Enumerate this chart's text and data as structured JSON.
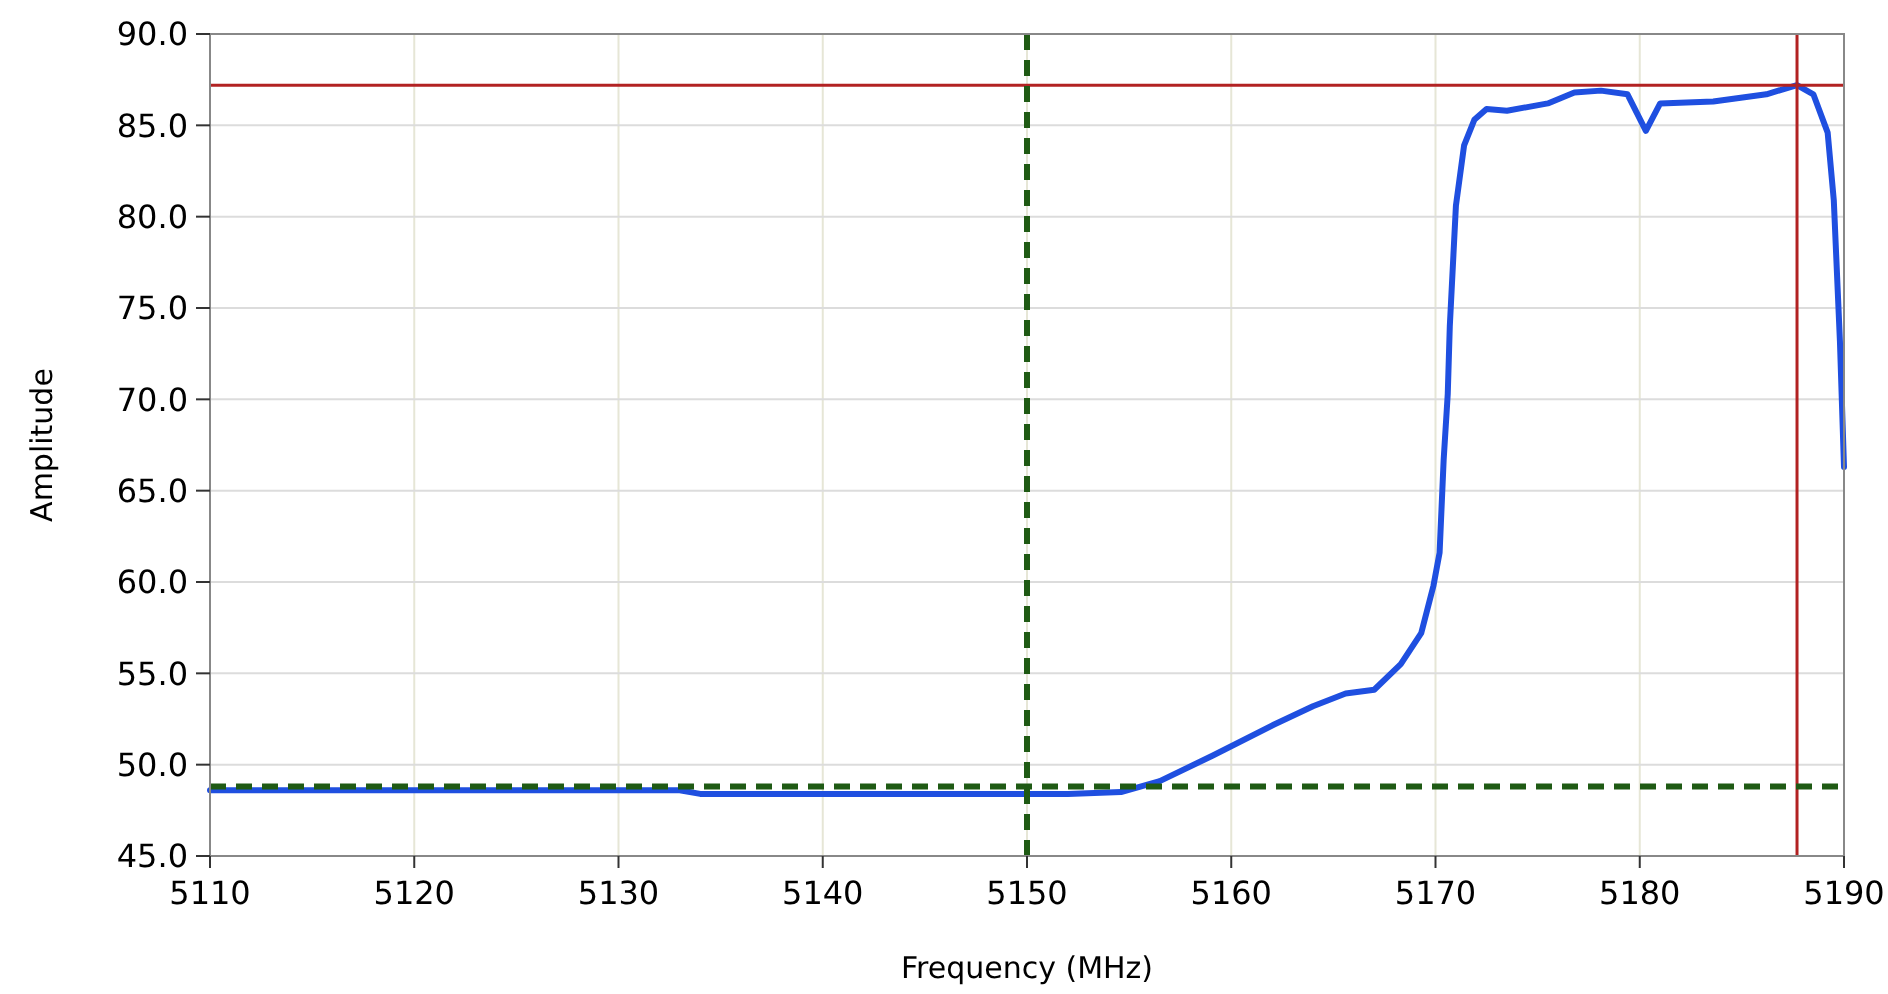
{
  "chart_data": {
    "type": "line",
    "xlabel": "Frequency (MHz)",
    "ylabel": "Amplitude",
    "xlim": [
      5110,
      5190
    ],
    "xticks": [
      5110,
      5120,
      5130,
      5140,
      5150,
      5160,
      5170,
      5180,
      5190
    ],
    "ylim": [
      45,
      90
    ],
    "yticks": [
      {
        "value": 45,
        "label": "45.0"
      },
      {
        "value": 50,
        "label": "50.0"
      },
      {
        "value": 55,
        "label": "55.0"
      },
      {
        "value": 60,
        "label": "60.0"
      },
      {
        "value": 65,
        "label": "65.0"
      },
      {
        "value": 70,
        "label": "70.0"
      },
      {
        "value": 75,
        "label": "75.0"
      },
      {
        "value": 80,
        "label": "80.0"
      },
      {
        "value": 85,
        "label": "85.0"
      },
      {
        "value": 90,
        "label": "90.0"
      }
    ],
    "grid": true,
    "line_style": "solid",
    "marker": "none",
    "series": [
      {
        "color": "#1f4fe0",
        "x": [
          5110,
          5120,
          5133,
          5134,
          5145,
          5152,
          5154.6,
          5156.5,
          5159.1,
          5162.1,
          5164,
          5165.6,
          5167,
          5168.3,
          5169.3,
          5169.9,
          5170.2,
          5170.4,
          5170.6,
          5170.7,
          5171,
          5171.4,
          5171.9,
          5172.5,
          5173.5,
          5175.5,
          5176.8,
          5178.1,
          5179.4,
          5180.3,
          5181,
          5183.6,
          5186.2,
          5187.7,
          5188.5,
          5189.2,
          5189.5,
          5189.8,
          5190
        ],
        "values": [
          48.6,
          48.6,
          48.6,
          48.4,
          48.4,
          48.4,
          48.5,
          49.1,
          50.5,
          52.2,
          53.2,
          53.9,
          54.1,
          55.5,
          57.2,
          59.8,
          61.6,
          66.7,
          70.3,
          74,
          80.6,
          83.9,
          85.3,
          85.9,
          85.8,
          86.2,
          86.8,
          86.9,
          86.7,
          84.7,
          86.2,
          86.3,
          86.7,
          87.2,
          86.7,
          84.6,
          80.9,
          73.2,
          66.3
        ]
      }
    ],
    "ref_lines": [
      {
        "axis": "y",
        "value": 87.2,
        "color": "#b22222",
        "line_style": "solid"
      },
      {
        "axis": "x",
        "value": 5187.7,
        "color": "#b22222",
        "line_style": "solid"
      },
      {
        "axis": "y",
        "value": 48.8,
        "color": "#1f5a14",
        "line_style": "dashed"
      },
      {
        "axis": "x",
        "value": 5150,
        "color": "#1f5a14",
        "line_style": "dashed"
      }
    ]
  }
}
